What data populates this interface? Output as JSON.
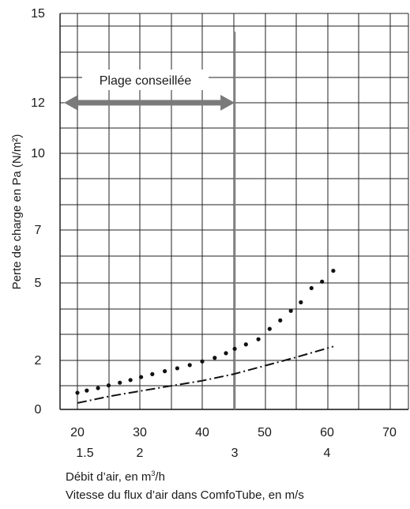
{
  "chart_data": {
    "type": "scatter",
    "ylabel": "Perte de charge en Pa (N/m²)",
    "yticks": [
      0,
      2,
      5,
      7,
      10,
      12,
      15
    ],
    "ylim": [
      0,
      15
    ],
    "xlim": [
      19,
      73
    ],
    "xticks_flow": [
      20,
      30,
      40,
      50,
      60,
      70
    ],
    "xticks_velocity": [
      {
        "value": 1.5,
        "flow": 21.2
      },
      {
        "value": 2,
        "flow": 30
      },
      {
        "value": 3,
        "flow": 45.2
      },
      {
        "value": 4,
        "flow": 60
      }
    ],
    "grid": true,
    "xlabel_flow_prefix": "Débit d’air, en m",
    "xlabel_flow_sup": "3",
    "xlabel_flow_suffix": "/h",
    "xlabel_velocity": "Vitesse du flux d’air dans ComfoTube, en m/s",
    "recommended_range": {
      "label": "Plage conseillée",
      "y": 12,
      "x_end": 45.2
    },
    "marker_line_x": 45.2,
    "series": [
      {
        "style": "dotted",
        "points": [
          [
            20,
            0.68
          ],
          [
            21.5,
            0.77
          ],
          [
            23.3,
            0.87
          ],
          [
            25,
            0.98
          ],
          [
            26.8,
            1.09
          ],
          [
            28.5,
            1.2
          ],
          [
            30.2,
            1.32
          ],
          [
            32,
            1.44
          ],
          [
            34,
            1.56
          ],
          [
            36,
            1.68
          ],
          [
            38,
            1.81
          ],
          [
            40,
            1.96
          ],
          [
            42,
            2.1
          ],
          [
            43.8,
            2.28
          ],
          [
            45.2,
            2.45
          ],
          [
            47,
            2.62
          ],
          [
            49,
            2.82
          ],
          [
            50.8,
            3.22
          ],
          [
            52.5,
            3.55
          ],
          [
            54.2,
            3.92
          ],
          [
            55.8,
            4.25
          ],
          [
            57.5,
            4.8
          ],
          [
            59.2,
            5.05
          ],
          [
            61,
            5.46
          ]
        ]
      },
      {
        "style": "dash-dot",
        "points": [
          [
            20,
            0.26
          ],
          [
            25,
            0.53
          ],
          [
            30,
            0.75
          ],
          [
            35,
            0.96
          ],
          [
            40,
            1.17
          ],
          [
            45,
            1.44
          ],
          [
            50,
            1.78
          ],
          [
            55,
            2.12
          ],
          [
            61,
            2.54
          ]
        ]
      }
    ]
  }
}
